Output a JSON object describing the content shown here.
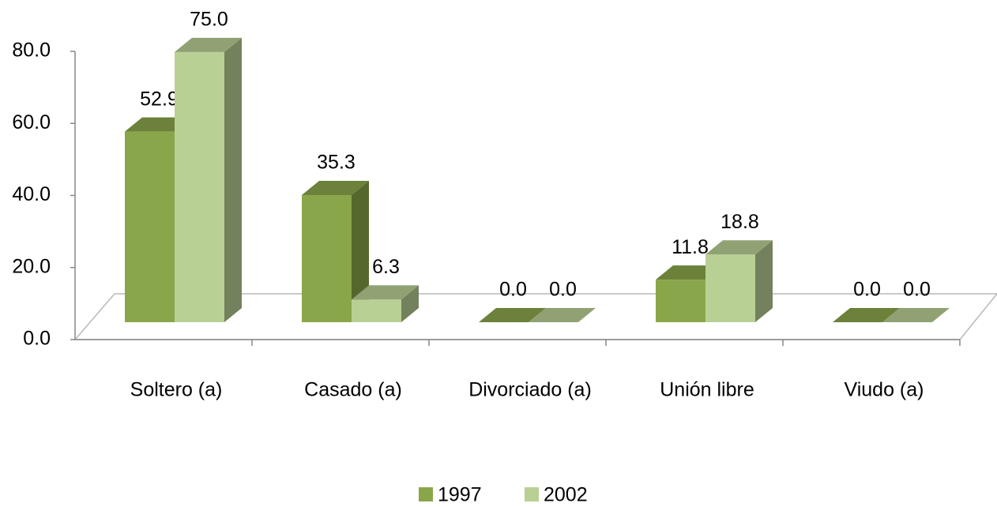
{
  "chart_data": {
    "type": "bar3d",
    "categories": [
      "Soltero (a)",
      "Casado (a)",
      "Divorciado (a)",
      "Unión libre",
      "Viudo (a)"
    ],
    "series": [
      {
        "name": "1997",
        "color": "#8aa64a",
        "values": [
          52.9,
          35.3,
          0.0,
          11.8,
          0.0
        ],
        "value_labels": [
          "52.9",
          "35.3",
          "0.0",
          "11.8",
          "0.0"
        ]
      },
      {
        "name": "2002",
        "color": "#b9d095",
        "values": [
          75.0,
          6.3,
          0.0,
          18.8,
          0.0
        ],
        "value_labels": [
          "75.0",
          "6.3",
          "0.0",
          "18.8",
          "0.0"
        ]
      }
    ],
    "ylim": [
      0,
      80
    ],
    "yticks": [
      {
        "value": 0,
        "label": "0.0"
      },
      {
        "value": 20,
        "label": "20.0"
      },
      {
        "value": 40,
        "label": "40.0"
      },
      {
        "value": 60,
        "label": "60.0"
      },
      {
        "value": 80,
        "label": "80.0"
      }
    ],
    "legend": "bottom"
  }
}
